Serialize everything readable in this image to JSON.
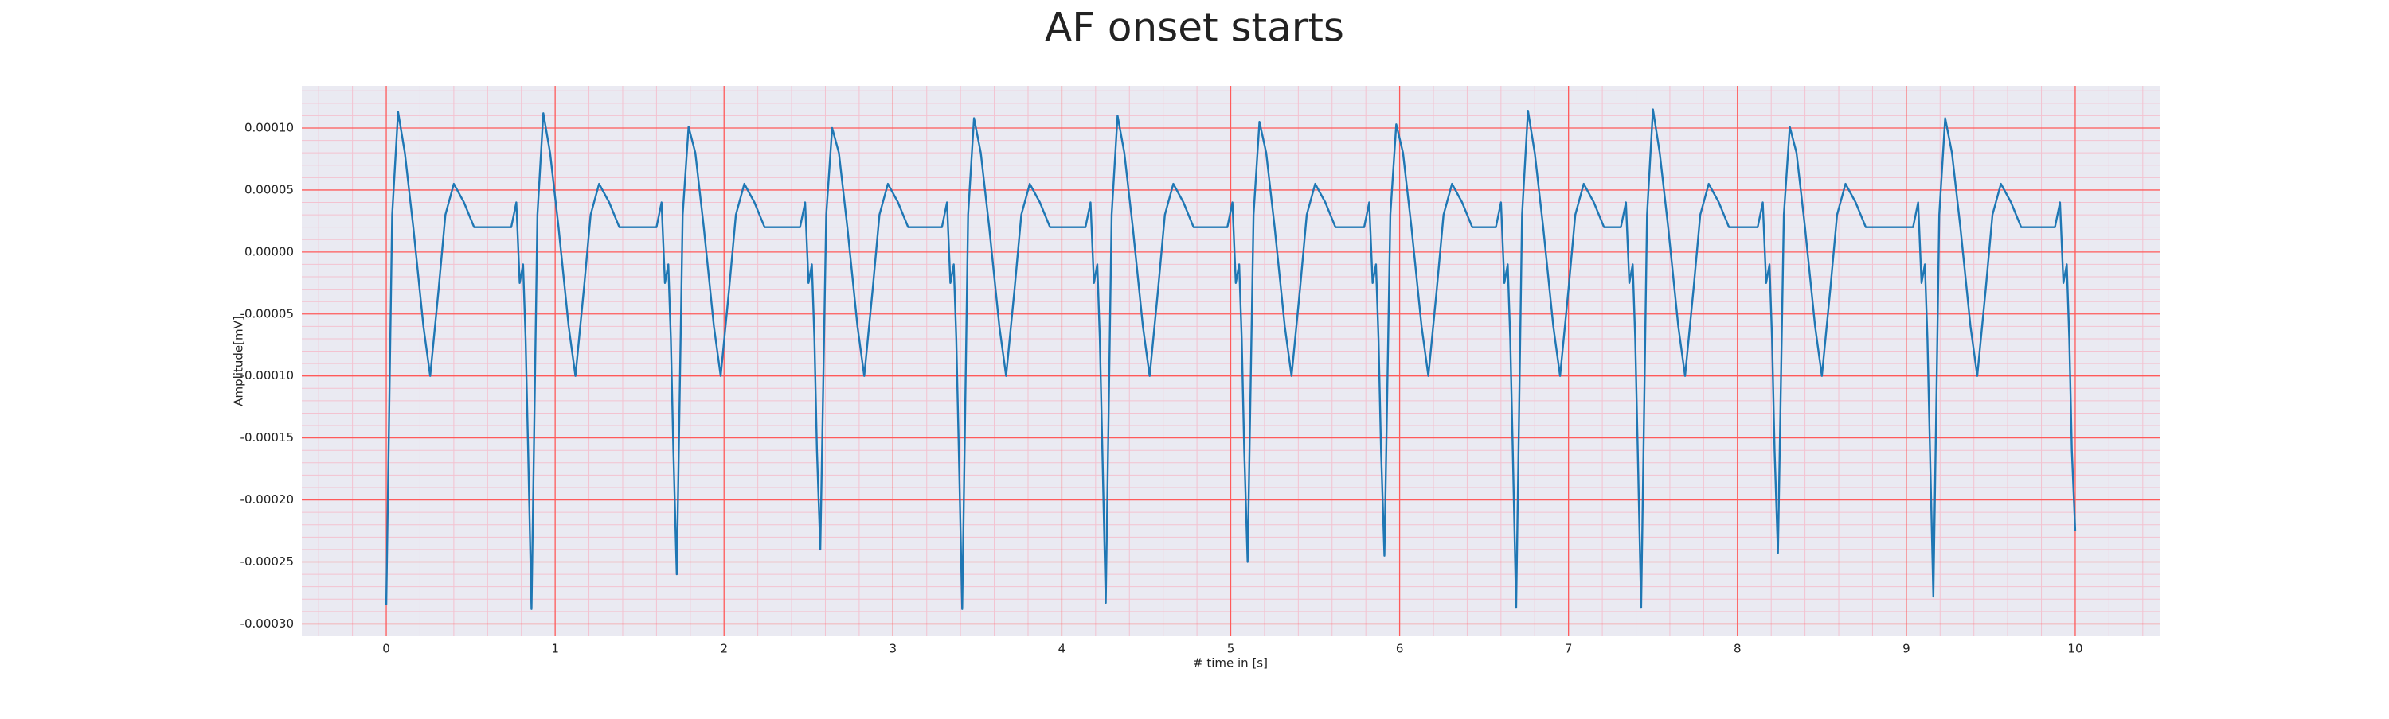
{
  "chart_data": {
    "type": "line",
    "title": "AF onset starts",
    "xlabel": "# time in [s]",
    "ylabel": "Amplitude[mV]",
    "color": "#1f77b4",
    "major_grid_color": "#ff5a5a",
    "minor_grid_color": "#f3c2d0",
    "background": "#eaeaf2",
    "grid": true,
    "xlim": [
      -0.5,
      10.5
    ],
    "ylim": [
      -0.00031,
      0.000134
    ],
    "xticks": [
      0,
      1,
      2,
      3,
      4,
      5,
      6,
      7,
      8,
      9,
      10
    ],
    "yticks": [
      {
        "value": -0.0003,
        "label": "-0.00030"
      },
      {
        "value": -0.00025,
        "label": "-0.00025"
      },
      {
        "value": -0.0002,
        "label": "-0.00020"
      },
      {
        "value": -0.00015,
        "label": "-0.00015"
      },
      {
        "value": -0.0001,
        "label": "-0.00010"
      },
      {
        "value": -5e-05,
        "label": "-0.00005"
      },
      {
        "value": 0,
        "label": "0.00000"
      },
      {
        "value": 5e-05,
        "label": "0.00005"
      },
      {
        "value": 0.0001,
        "label": "0.00010"
      }
    ],
    "xminorticks": [
      -0.4,
      -0.2,
      0.2,
      0.4,
      0.6,
      0.8,
      1.2,
      1.4,
      1.6,
      1.8,
      2.2,
      2.4,
      2.6,
      2.8,
      3.2,
      3.4,
      3.6,
      3.8,
      4.2,
      4.4,
      4.6,
      4.8,
      5.2,
      5.4,
      5.6,
      5.8,
      6.2,
      6.4,
      6.6,
      6.8,
      7.2,
      7.4,
      7.6,
      7.8,
      8.2,
      8.4,
      8.6,
      8.8,
      9.2,
      9.4,
      9.6,
      9.8,
      10.2,
      10.4
    ],
    "yminorticks": [
      -0.00029,
      -0.00028,
      -0.00027,
      -0.00026,
      -0.00024,
      -0.00023,
      -0.00022,
      -0.00021,
      -0.00019,
      -0.00018,
      -0.00017,
      -0.00016,
      -0.00014,
      -0.00013,
      -0.00012,
      -0.00011,
      -9e-05,
      -8e-05,
      -7e-05,
      -6e-05,
      -4e-05,
      -3e-05,
      -2e-05,
      -1e-05,
      1e-05,
      2e-05,
      3e-05,
      4e-05,
      6e-05,
      7e-05,
      8e-05,
      9e-05,
      0.00011,
      0.00012,
      0.00013
    ],
    "x": [
      0,
      0.035,
      0.07,
      0.11,
      0.16,
      0.22,
      0.26,
      0.31,
      0.35,
      0.4,
      0.46,
      0.52,
      0.74,
      0.77,
      0.79,
      0.81,
      0.825,
      0.84,
      0.86,
      0.895,
      0.93,
      0.97,
      1.02,
      1.08,
      1.12,
      1.17,
      1.21,
      1.26,
      1.32,
      1.38,
      1.6,
      1.63,
      1.65,
      1.67,
      1.685,
      1.7,
      1.72,
      1.755,
      1.79,
      1.83,
      1.88,
      1.94,
      1.98,
      2.03,
      2.07,
      2.12,
      2.18,
      2.24,
      2.45,
      2.48,
      2.5,
      2.52,
      2.535,
      2.55,
      2.57,
      2.605,
      2.64,
      2.68,
      2.73,
      2.79,
      2.83,
      2.88,
      2.92,
      2.97,
      3.03,
      3.09,
      3.29,
      3.32,
      3.34,
      3.36,
      3.375,
      3.39,
      3.41,
      3.445,
      3.48,
      3.52,
      3.57,
      3.63,
      3.67,
      3.72,
      3.76,
      3.81,
      3.87,
      3.93,
      4.14,
      4.17,
      4.19,
      4.21,
      4.225,
      4.24,
      4.26,
      4.295,
      4.33,
      4.37,
      4.42,
      4.48,
      4.52,
      4.57,
      4.61,
      4.66,
      4.72,
      4.78,
      4.98,
      5.01,
      5.03,
      5.05,
      5.065,
      5.08,
      5.1,
      5.135,
      5.17,
      5.21,
      5.26,
      5.32,
      5.36,
      5.41,
      5.45,
      5.5,
      5.56,
      5.62,
      5.79,
      5.82,
      5.84,
      5.86,
      5.875,
      5.89,
      5.91,
      5.945,
      5.98,
      6.02,
      6.07,
      6.13,
      6.17,
      6.22,
      6.26,
      6.31,
      6.37,
      6.43,
      6.57,
      6.6,
      6.62,
      6.64,
      6.655,
      6.67,
      6.69,
      6.725,
      6.76,
      6.8,
      6.85,
      6.91,
      6.95,
      7.0,
      7.04,
      7.09,
      7.15,
      7.21,
      7.31,
      7.34,
      7.36,
      7.38,
      7.395,
      7.41,
      7.43,
      7.465,
      7.5,
      7.54,
      7.59,
      7.65,
      7.69,
      7.74,
      7.78,
      7.83,
      7.89,
      7.95,
      8.12,
      8.15,
      8.17,
      8.19,
      8.205,
      8.22,
      8.24,
      8.275,
      8.31,
      8.35,
      8.4,
      8.46,
      8.5,
      8.55,
      8.59,
      8.64,
      8.7,
      8.76,
      9.04,
      9.07,
      9.09,
      9.11,
      9.125,
      9.14,
      9.16,
      9.195,
      9.23,
      9.27,
      9.32,
      9.38,
      9.42,
      9.47,
      9.51,
      9.56,
      9.62,
      9.68,
      9.88,
      9.91,
      9.93,
      9.95,
      9.965,
      9.98,
      10
    ],
    "values": [
      -0.000285,
      3e-05,
      0.000113,
      8e-05,
      2e-05,
      -6e-05,
      -0.0001,
      -3e-05,
      3e-05,
      5.5e-05,
      4e-05,
      2e-05,
      2e-05,
      4e-05,
      -2.5e-05,
      -1e-05,
      -7e-05,
      -0.00016,
      -0.000288,
      3e-05,
      0.000112,
      8e-05,
      2e-05,
      -6e-05,
      -0.0001,
      -3e-05,
      3e-05,
      5.5e-05,
      4e-05,
      2e-05,
      2e-05,
      4e-05,
      -2.5e-05,
      -1e-05,
      -7e-05,
      -0.00016,
      -0.00026,
      3e-05,
      0.000101,
      8e-05,
      2e-05,
      -6e-05,
      -0.0001,
      -3e-05,
      3e-05,
      5.5e-05,
      4e-05,
      2e-05,
      2e-05,
      4e-05,
      -2.5e-05,
      -1e-05,
      -7e-05,
      -0.00016,
      -0.00024,
      3e-05,
      0.0001,
      8e-05,
      2e-05,
      -6e-05,
      -0.0001,
      -3e-05,
      3e-05,
      5.5e-05,
      4e-05,
      2e-05,
      2e-05,
      4e-05,
      -2.5e-05,
      -1e-05,
      -7e-05,
      -0.00016,
      -0.000288,
      3e-05,
      0.000108,
      8e-05,
      2e-05,
      -6e-05,
      -0.0001,
      -3e-05,
      3e-05,
      5.5e-05,
      4e-05,
      2e-05,
      2e-05,
      4e-05,
      -2.5e-05,
      -1e-05,
      -7e-05,
      -0.00016,
      -0.000283,
      3e-05,
      0.00011,
      8e-05,
      2e-05,
      -6e-05,
      -0.0001,
      -3e-05,
      3e-05,
      5.5e-05,
      4e-05,
      2e-05,
      2e-05,
      4e-05,
      -2.5e-05,
      -1e-05,
      -7e-05,
      -0.00016,
      -0.00025,
      3e-05,
      0.000105,
      8e-05,
      2e-05,
      -6e-05,
      -0.0001,
      -3e-05,
      3e-05,
      5.5e-05,
      4e-05,
      2e-05,
      2e-05,
      4e-05,
      -2.5e-05,
      -1e-05,
      -7e-05,
      -0.00016,
      -0.000245,
      3e-05,
      0.000103,
      8e-05,
      2e-05,
      -6e-05,
      -0.0001,
      -3e-05,
      3e-05,
      5.5e-05,
      4e-05,
      2e-05,
      2e-05,
      4e-05,
      -2.5e-05,
      -1e-05,
      -7e-05,
      -0.00016,
      -0.000287,
      3e-05,
      0.000114,
      8e-05,
      2e-05,
      -6e-05,
      -0.0001,
      -3e-05,
      3e-05,
      5.5e-05,
      4e-05,
      2e-05,
      2e-05,
      4e-05,
      -2.5e-05,
      -1e-05,
      -7e-05,
      -0.00016,
      -0.000287,
      3e-05,
      0.000115,
      8e-05,
      2e-05,
      -6e-05,
      -0.0001,
      -3e-05,
      3e-05,
      5.5e-05,
      4e-05,
      2e-05,
      2e-05,
      4e-05,
      -2.5e-05,
      -1e-05,
      -7e-05,
      -0.00016,
      -0.000243,
      3e-05,
      0.000101,
      8e-05,
      2e-05,
      -6e-05,
      -0.0001,
      -3e-05,
      3e-05,
      5.5e-05,
      4e-05,
      2e-05,
      2e-05,
      4e-05,
      -2.5e-05,
      -1e-05,
      -7e-05,
      -0.00016,
      -0.000278,
      3e-05,
      0.000108,
      8e-05,
      2e-05,
      -6e-05,
      -0.0001,
      -3e-05,
      3e-05,
      5.5e-05,
      4e-05,
      2e-05,
      2e-05,
      4e-05,
      -2.5e-05,
      -1e-05,
      -7e-05,
      -0.00016,
      -0.000225
    ]
  }
}
